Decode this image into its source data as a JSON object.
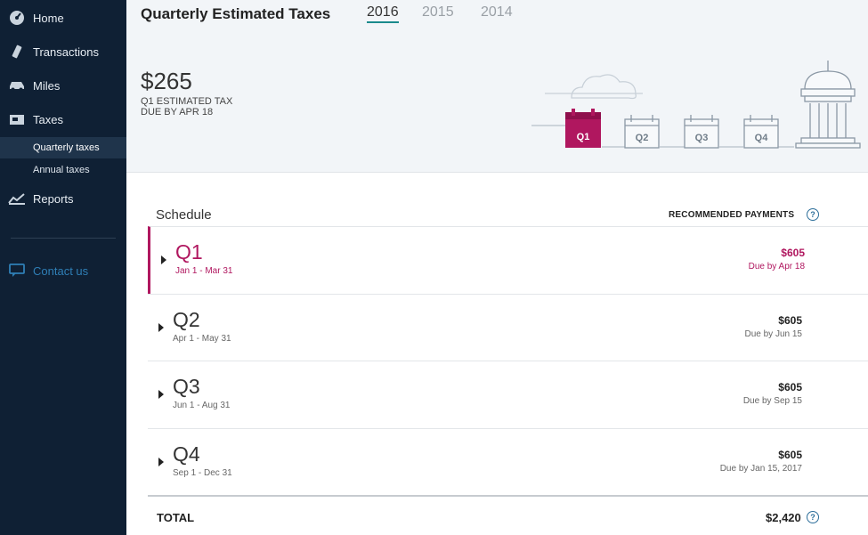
{
  "sidebar": {
    "items": [
      {
        "label": "Home",
        "icon": "dashboard-icon"
      },
      {
        "label": "Transactions",
        "icon": "transactions-icon"
      },
      {
        "label": "Miles",
        "icon": "car-icon"
      },
      {
        "label": "Taxes",
        "icon": "taxes-icon"
      },
      {
        "label": "Reports",
        "icon": "reports-icon"
      }
    ],
    "sub_items": [
      {
        "label": "Quarterly taxes"
      },
      {
        "label": "Annual taxes"
      }
    ],
    "contact": {
      "label": "Contact us",
      "icon": "contact-icon"
    }
  },
  "header": {
    "title": "Quarterly Estimated Taxes",
    "years": [
      "2016",
      "2015",
      "2014"
    ],
    "active_year": "2016",
    "amount": "$265",
    "estimate_label": "Q1 ESTIMATED TAX",
    "due_label": "DUE BY APR 18",
    "quarters": [
      "Q1",
      "Q2",
      "Q3",
      "Q4"
    ]
  },
  "schedule": {
    "title": "Schedule",
    "recommended_label": "RECOMMENDED PAYMENTS",
    "rows": [
      {
        "quarter": "Q1",
        "range": "Jan 1 - Mar 31",
        "amount": "$605",
        "due": "Due by Apr 18"
      },
      {
        "quarter": "Q2",
        "range": "Apr 1 - May 31",
        "amount": "$605",
        "due": "Due by Jun 15"
      },
      {
        "quarter": "Q3",
        "range": "Jun 1 - Aug 31",
        "amount": "$605",
        "due": "Due by Sep 15"
      },
      {
        "quarter": "Q4",
        "range": "Sep 1 - Dec 31",
        "amount": "$605",
        "due": "Due by Jan 15, 2017"
      }
    ],
    "total_label": "TOTAL",
    "total_value": "$2,420"
  },
  "colors": {
    "sidebar": "#0f2034",
    "accent": "#b0175f",
    "tab_underline": "#1b8a8c"
  }
}
